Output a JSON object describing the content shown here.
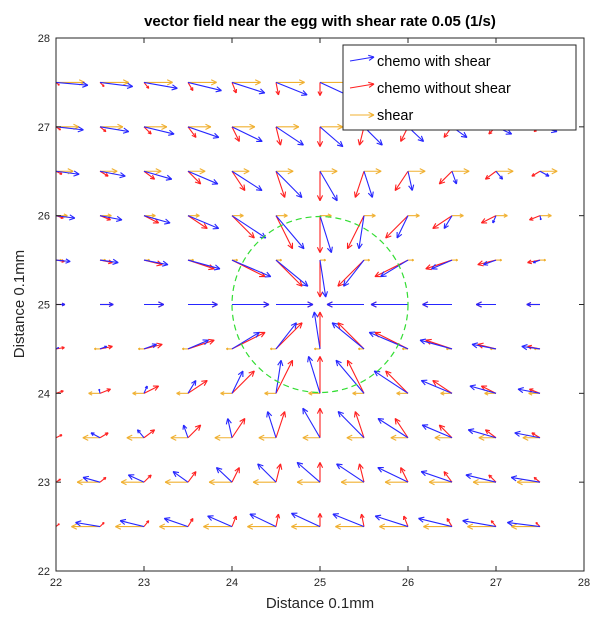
{
  "chart_data": {
    "type": "quiver",
    "title": "vector field near the egg with shear rate 0.05 (1/s)",
    "xlabel": "Distance 0.1mm",
    "ylabel": "Distance 0.1mm",
    "xlim": [
      22,
      28
    ],
    "ylim": [
      22,
      28
    ],
    "xticks": [
      "22",
      "23",
      "24",
      "25",
      "26",
      "27",
      "28"
    ],
    "yticks": [
      "22",
      "23",
      "24",
      "25",
      "26",
      "27",
      "28"
    ],
    "grid": false,
    "legend_position": "top-right",
    "egg": {
      "center": [
        25,
        25
      ],
      "radius": 1.0,
      "color": "#33dd33",
      "style": "dashed"
    },
    "grid_points": {
      "x_start": 22,
      "x_step": 0.5,
      "x_count": 12,
      "y_start": 22.5,
      "y_step": 0.5,
      "y_count": 11
    },
    "chemo_model": {
      "strength": 0.5,
      "decay": 0.8,
      "clip": 0.42
    },
    "shear_model": {
      "rate": 0.05,
      "center_y": 25,
      "gain": 0.13
    },
    "series": [
      {
        "name": "chemo with shear",
        "color": "#2626ff"
      },
      {
        "name": "chemo without shear",
        "color": "#ff2020"
      },
      {
        "name": "shear",
        "color": "#f0b030"
      }
    ]
  }
}
